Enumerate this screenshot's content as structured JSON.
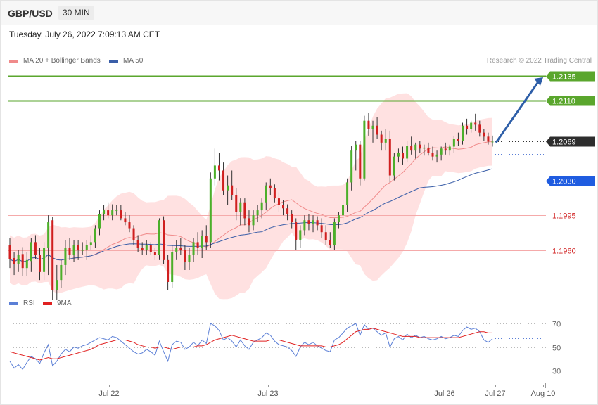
{
  "header": {
    "pair": "GBP/USD",
    "timeframe": "30 MIN"
  },
  "timestamp": "Tuesday, July 26, 2022 7:09:13 AM CET",
  "legend": {
    "ma20": "MA 20 + Bollinger Bands",
    "ma50": "MA 50",
    "rsi": "RSI",
    "rsi_ma": "9MA"
  },
  "credit": "Research © 2022 Trading Central",
  "colors": {
    "up": "#4caf2a",
    "down": "#d01f1f",
    "band": "#ffe1e1",
    "ma20": "#f08a8a",
    "ma50": "#3a5ea8",
    "resistance": "#5aa62d",
    "pivot": "#1f5ce0",
    "support": "#f5aaaa",
    "arrow": "#2d5ea8",
    "rsi": "#5b7fd6",
    "rsi_ma": "#e02020"
  },
  "chart_data": [
    {
      "type": "candlestick",
      "pair": "GBP/USD",
      "timeframe": "30 MIN",
      "ylim": [
        1.1905,
        1.2145
      ],
      "x_ticks": [
        "Jul 22",
        "Jul 23",
        "Jul 26",
        "Jul 27",
        "Aug 10"
      ],
      "levels": [
        {
          "label": "1.2135",
          "value": 1.2135,
          "kind": "resistance"
        },
        {
          "label": "1.2110",
          "value": 1.211,
          "kind": "resistance"
        },
        {
          "label": "1.2069",
          "value": 1.2069,
          "kind": "last"
        },
        {
          "label": "1.2030",
          "value": 1.203,
          "kind": "pivot"
        },
        {
          "label": "1.1995",
          "value": 1.1995,
          "kind": "support"
        },
        {
          "label": "1.1960",
          "value": 1.196,
          "kind": "support"
        }
      ],
      "target_arrow": {
        "from": 1.2068,
        "to": 1.2135
      },
      "candles": [
        [
          1.1965,
          1.1972,
          1.1942,
          1.1951
        ],
        [
          1.1952,
          1.1958,
          1.1935,
          1.1946
        ],
        [
          1.1946,
          1.196,
          1.1938,
          1.1955
        ],
        [
          1.1956,
          1.1963,
          1.1934,
          1.1942
        ],
        [
          1.1942,
          1.1958,
          1.1934,
          1.195
        ],
        [
          1.1949,
          1.1972,
          1.1938,
          1.1968
        ],
        [
          1.1968,
          1.1975,
          1.1951,
          1.1955
        ],
        [
          1.1955,
          1.1962,
          1.193,
          1.1938
        ],
        [
          1.1938,
          1.1968,
          1.193,
          1.1962
        ],
        [
          1.1962,
          1.1995,
          1.1935,
          1.1988
        ],
        [
          1.199,
          1.1993,
          1.191,
          1.192
        ],
        [
          1.192,
          1.1945,
          1.191,
          1.193
        ],
        [
          1.193,
          1.195,
          1.1922,
          1.1945
        ],
        [
          1.1945,
          1.197,
          1.1935,
          1.1962
        ],
        [
          1.1962,
          1.1972,
          1.195,
          1.1955
        ],
        [
          1.1955,
          1.197,
          1.1948,
          1.1965
        ],
        [
          1.1965,
          1.197,
          1.195,
          1.196
        ],
        [
          1.196,
          1.1968,
          1.1955,
          1.196
        ],
        [
          1.196,
          1.197,
          1.195,
          1.1965
        ],
        [
          1.1965,
          1.1975,
          1.196,
          1.1968
        ],
        [
          1.1968,
          1.1985,
          1.1962,
          1.1982
        ],
        [
          1.1982,
          1.2,
          1.1975,
          1.1996
        ],
        [
          1.1996,
          1.2005,
          1.199,
          1.2
        ],
        [
          1.2,
          1.2008,
          1.1992,
          1.1995
        ],
        [
          1.1995,
          1.2006,
          1.199,
          1.2
        ],
        [
          1.2,
          1.2005,
          1.1995,
          1.2
        ],
        [
          1.2,
          1.2005,
          1.199,
          1.1992
        ],
        [
          1.1992,
          1.1998,
          1.1985,
          1.1988
        ],
        [
          1.1988,
          1.1995,
          1.1978,
          1.1982
        ],
        [
          1.1982,
          1.1985,
          1.1965,
          1.197
        ],
        [
          1.197,
          1.1975,
          1.1958,
          1.1962
        ],
        [
          1.1962,
          1.1968,
          1.1955,
          1.196
        ],
        [
          1.196,
          1.197,
          1.1955,
          1.1965
        ],
        [
          1.1965,
          1.1968,
          1.1955,
          1.1958
        ],
        [
          1.1958,
          1.1962,
          1.195,
          1.1955
        ],
        [
          1.1955,
          1.1992,
          1.195,
          1.199
        ],
        [
          1.199,
          1.1994,
          1.1946,
          1.195
        ],
        [
          1.195,
          1.1955,
          1.192,
          1.1928
        ],
        [
          1.1928,
          1.1965,
          1.1922,
          1.1958
        ],
        [
          1.1958,
          1.197,
          1.195,
          1.1962
        ],
        [
          1.1962,
          1.1972,
          1.1955,
          1.196
        ],
        [
          1.196,
          1.1965,
          1.194,
          1.1948
        ],
        [
          1.1948,
          1.1962,
          1.194,
          1.1955
        ],
        [
          1.1955,
          1.1972,
          1.1948,
          1.1968
        ],
        [
          1.1968,
          1.1978,
          1.1955,
          1.1962
        ],
        [
          1.1962,
          1.198,
          1.1952,
          1.1974
        ],
        [
          1.1974,
          1.1985,
          1.196,
          1.1968
        ],
        [
          1.1968,
          1.2038,
          1.1962,
          1.2032
        ],
        [
          1.2032,
          1.2062,
          1.2025,
          1.2045
        ],
        [
          1.2045,
          1.2058,
          1.203,
          1.204
        ],
        [
          1.204,
          1.2048,
          1.2015,
          1.202
        ],
        [
          1.202,
          1.2035,
          1.2005,
          1.2025
        ],
        [
          1.2025,
          1.204,
          1.201,
          1.2015
        ],
        [
          1.2015,
          1.2022,
          1.199,
          1.1998
        ],
        [
          1.1998,
          1.2012,
          1.1985,
          1.2008
        ],
        [
          1.2008,
          1.2012,
          1.1985,
          1.1992
        ],
        [
          1.1992,
          1.2,
          1.1978,
          1.1985
        ],
        [
          1.1985,
          1.2,
          1.198,
          1.1995
        ],
        [
          1.1995,
          1.2005,
          1.1988,
          1.2
        ],
        [
          1.2,
          1.2012,
          1.1992,
          1.2008
        ],
        [
          1.2008,
          1.2028,
          1.2,
          1.2025
        ],
        [
          1.2025,
          1.2032,
          1.2015,
          1.2022
        ],
        [
          1.2022,
          1.2026,
          1.2008,
          1.2012
        ],
        [
          1.2012,
          1.2018,
          1.1998,
          1.2005
        ],
        [
          1.2005,
          1.201,
          1.1995,
          1.2002
        ],
        [
          1.2002,
          1.2006,
          1.199,
          1.1996
        ],
        [
          1.1996,
          1.2,
          1.1982,
          1.1988
        ],
        [
          1.1988,
          1.1992,
          1.196,
          1.197
        ],
        [
          1.197,
          1.1985,
          1.1962,
          1.198
        ],
        [
          1.198,
          1.1995,
          1.1975,
          1.199
        ],
        [
          1.199,
          1.1996,
          1.198,
          1.1986
        ],
        [
          1.1986,
          1.1995,
          1.1978,
          1.199
        ],
        [
          1.199,
          1.1994,
          1.198,
          1.1985
        ],
        [
          1.1985,
          1.1992,
          1.1972,
          1.1978
        ],
        [
          1.1978,
          1.1985,
          1.1965,
          1.197
        ],
        [
          1.197,
          1.1978,
          1.1962,
          1.1965
        ],
        [
          1.1965,
          1.1992,
          1.196,
          1.1988
        ],
        [
          1.1988,
          1.1998,
          1.1982,
          1.1995
        ],
        [
          1.1995,
          1.201,
          1.1988,
          1.2005
        ],
        [
          1.2005,
          1.2032,
          1.1998,
          1.2028
        ],
        [
          1.2028,
          1.2065,
          1.202,
          1.206
        ],
        [
          1.206,
          1.207,
          1.204,
          1.2066
        ],
        [
          1.2066,
          1.207,
          1.2025,
          1.2032
        ],
        [
          1.2032,
          1.2095,
          1.203,
          1.209
        ],
        [
          1.209,
          1.2098,
          1.2075,
          1.2082
        ],
        [
          1.2082,
          1.209,
          1.2068,
          1.2085
        ],
        [
          1.2085,
          1.2094,
          1.2072,
          1.2076
        ],
        [
          1.2076,
          1.208,
          1.206,
          1.2068
        ],
        [
          1.2068,
          1.2082,
          1.206,
          1.2072
        ],
        [
          1.2072,
          1.208,
          1.2028,
          1.2035
        ],
        [
          1.2035,
          1.2058,
          1.203,
          1.2054
        ],
        [
          1.2054,
          1.2062,
          1.2048,
          1.2058
        ],
        [
          1.2058,
          1.2064,
          1.2046,
          1.2052
        ],
        [
          1.2052,
          1.207,
          1.2048,
          1.2065
        ],
        [
          1.2065,
          1.2074,
          1.2056,
          1.206
        ],
        [
          1.206,
          1.2068,
          1.2052,
          1.2066
        ],
        [
          1.2066,
          1.207,
          1.2058,
          1.2062
        ],
        [
          1.2062,
          1.2066,
          1.2055,
          1.2063
        ],
        [
          1.2063,
          1.2068,
          1.2055,
          1.2058
        ],
        [
          1.2058,
          1.2064,
          1.205,
          1.2054
        ],
        [
          1.2054,
          1.206,
          1.2048,
          1.2056
        ],
        [
          1.2056,
          1.2064,
          1.205,
          1.2062
        ],
        [
          1.2062,
          1.2068,
          1.2056,
          1.206
        ],
        [
          1.206,
          1.2066,
          1.2055,
          1.2064
        ],
        [
          1.2064,
          1.2075,
          1.2058,
          1.2072
        ],
        [
          1.2072,
          1.2078,
          1.2065,
          1.207
        ],
        [
          1.207,
          1.2088,
          1.2066,
          1.2085
        ],
        [
          1.2085,
          1.2092,
          1.2076,
          1.2082
        ],
        [
          1.2082,
          1.209,
          1.2078,
          1.2088
        ],
        [
          1.2088,
          1.2097,
          1.208,
          1.2086
        ],
        [
          1.2086,
          1.209,
          1.2074,
          1.2078
        ],
        [
          1.2078,
          1.2082,
          1.207,
          1.2074
        ],
        [
          1.2074,
          1.2078,
          1.2066,
          1.2069
        ],
        [
          1.2069,
          1.2075,
          1.2064,
          1.2069
        ]
      ]
    },
    {
      "type": "line",
      "title": "RSI",
      "y_ticks": [
        30,
        50,
        70
      ],
      "ylim": [
        25,
        75
      ],
      "series": [
        {
          "name": "RSI",
          "values": [
            38,
            32,
            35,
            31,
            37,
            42,
            40,
            36,
            45,
            52,
            34,
            38,
            44,
            48,
            46,
            50,
            49,
            51,
            52,
            54,
            56,
            58,
            57,
            56,
            59,
            58,
            55,
            52,
            49,
            46,
            44,
            45,
            48,
            46,
            43,
            55,
            46,
            38,
            52,
            55,
            54,
            48,
            50,
            54,
            51,
            56,
            53,
            70,
            68,
            64,
            56,
            58,
            55,
            50,
            56,
            51,
            48,
            54,
            56,
            58,
            62,
            60,
            55,
            52,
            51,
            50,
            47,
            42,
            50,
            54,
            52,
            54,
            51,
            49,
            47,
            46,
            56,
            58,
            62,
            66,
            68,
            70,
            60,
            69,
            65,
            66,
            63,
            60,
            62,
            50,
            57,
            59,
            56,
            61,
            58,
            60,
            58,
            59,
            57,
            56,
            57,
            59,
            57,
            58,
            60,
            59,
            64,
            67,
            65,
            66,
            63,
            56,
            54,
            57
          ]
        },
        {
          "name": "9MA",
          "values": [
            46,
            45,
            44,
            43,
            42,
            41,
            40,
            39,
            40,
            41,
            40,
            40,
            41,
            42,
            43,
            44,
            45,
            46,
            47,
            48,
            50,
            52,
            53,
            54,
            55,
            56,
            56,
            56,
            55,
            54,
            52,
            51,
            50,
            50,
            49,
            50,
            50,
            49,
            48,
            49,
            50,
            50,
            50,
            50,
            51,
            51,
            52,
            54,
            56,
            57,
            58,
            59,
            60,
            59,
            58,
            57,
            56,
            55,
            55,
            55,
            55,
            56,
            56,
            56,
            55,
            54,
            53,
            52,
            51,
            51,
            51,
            51,
            51,
            51,
            50,
            50,
            51,
            52,
            54,
            57,
            60,
            63,
            64,
            65,
            65,
            66,
            65,
            64,
            63,
            62,
            61,
            60,
            59,
            59,
            59,
            59,
            58,
            58,
            58,
            58,
            58,
            58,
            58,
            58,
            58,
            58,
            59,
            60,
            61,
            62,
            63,
            63,
            62,
            62
          ]
        }
      ]
    }
  ]
}
